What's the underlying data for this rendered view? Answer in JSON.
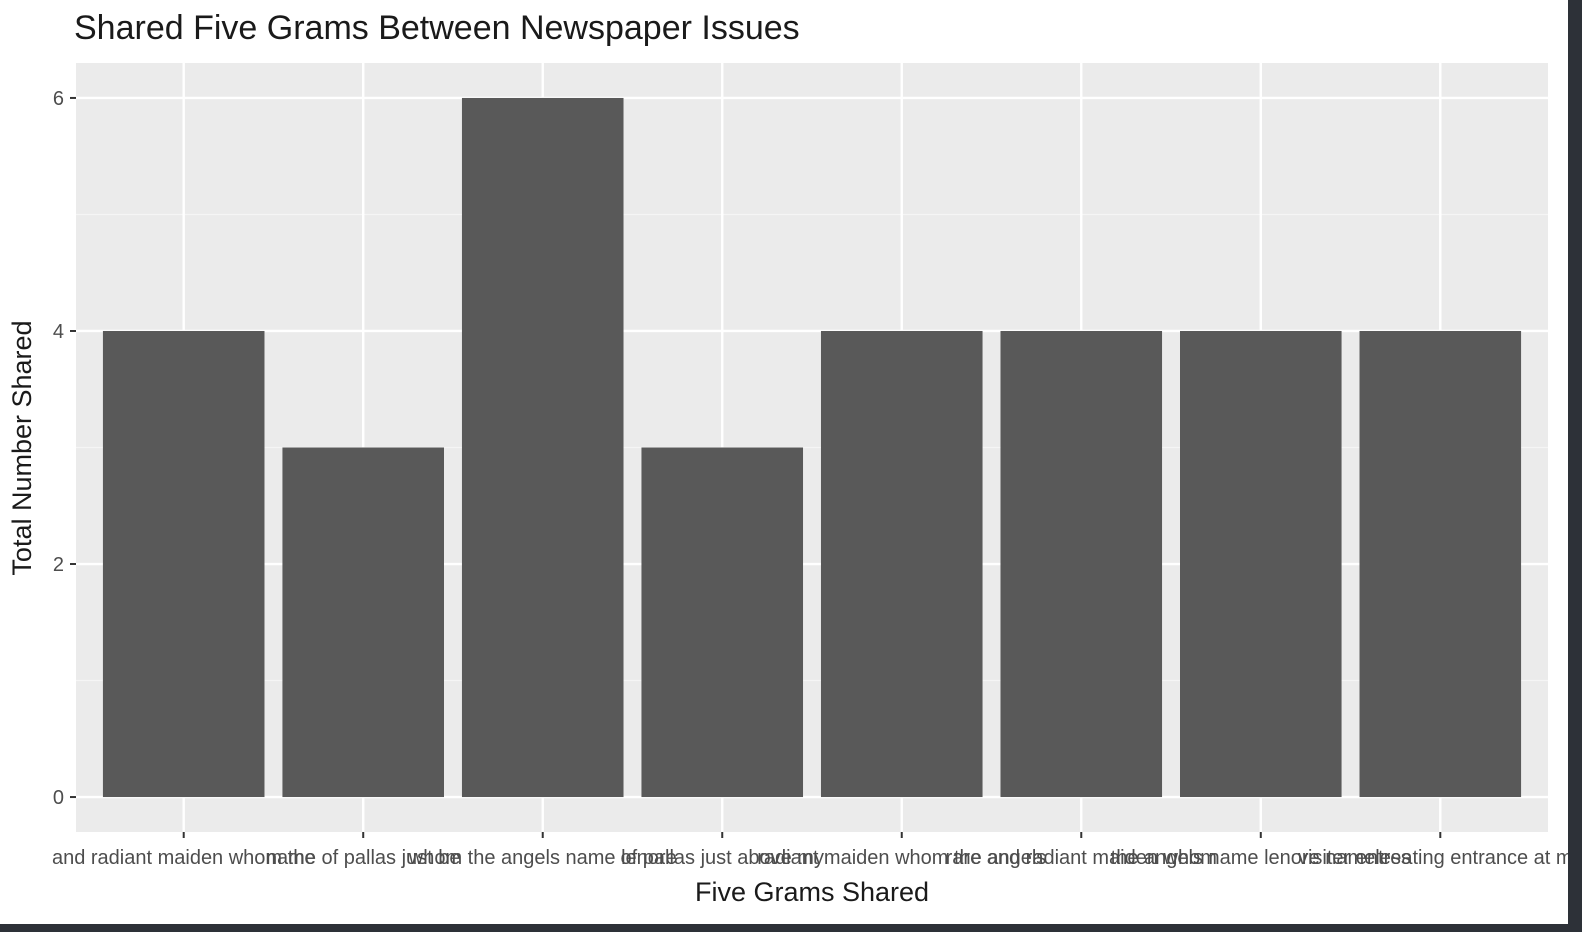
{
  "colors": {
    "panel": "#ebebeb",
    "grid_major": "#ffffff",
    "grid_minor": "#f5f5f5",
    "bar": "#595959",
    "tick": "#333333",
    "frame_dark": "#2d3138"
  },
  "chart_data": {
    "type": "bar",
    "title": "Shared Five Grams Between Newspaper Issues",
    "xlabel": "Five Grams Shared",
    "ylabel": "Total Number Shared",
    "categories": [
      "and radiant maiden whom the",
      "name of pallas just be",
      "whom the angels name lenore",
      "of pallas just above my",
      "radiant maiden whom the angels",
      "rare and radiant maiden whom",
      "the angels name lenore nameless",
      "visiter entreating entrance at my"
    ],
    "values": [
      4,
      3,
      6,
      3,
      4,
      4,
      4,
      4
    ],
    "ylim": [
      -0.3,
      6.3
    ],
    "yticks": [
      0,
      2,
      4,
      6
    ],
    "grid": true,
    "legend": "none"
  }
}
